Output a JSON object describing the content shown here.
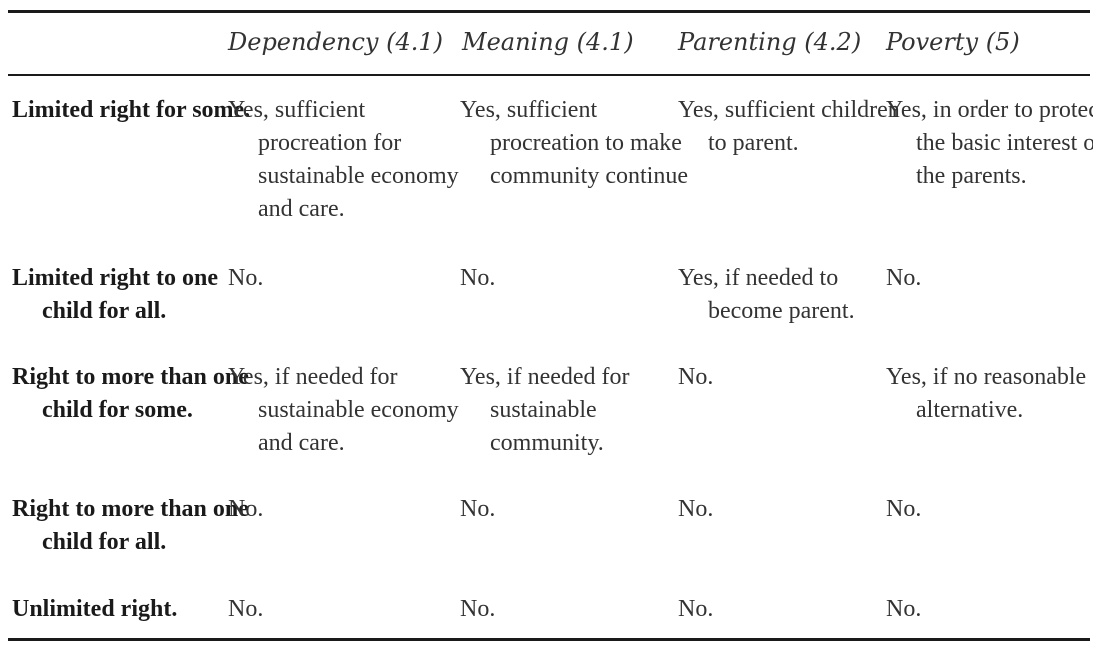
{
  "table": {
    "columns": [
      "",
      "Dependency (4.1)",
      "Meaning (4.1)",
      "Parenting (4.2)",
      "Poverty (5)"
    ],
    "rows": [
      {
        "label": "Limited right for some.",
        "cells": [
          "Yes, sufficient procreation for sustainable economy and care.",
          "Yes, sufficient procreation to make community continue",
          "Yes, sufficient children to parent.",
          "Yes, in order to protect the basic interest of the parents."
        ]
      },
      {
        "label": "Limited right to one child for all.",
        "cells": [
          "No.",
          "No.",
          "Yes, if needed to become parent.",
          "No."
        ]
      },
      {
        "label": "Right to more than one child for some.",
        "cells": [
          "Yes, if needed for sustainable economy and care.",
          "Yes, if needed for sustainable community.",
          "No.",
          "Yes, if no reasonable alternative."
        ]
      },
      {
        "label": "Right to more than one child for all.",
        "cells": [
          "No.",
          "No.",
          "No.",
          "No."
        ]
      },
      {
        "label": "Unlimited right.",
        "cells": [
          "No.",
          "No.",
          "No.",
          "No."
        ]
      }
    ]
  }
}
